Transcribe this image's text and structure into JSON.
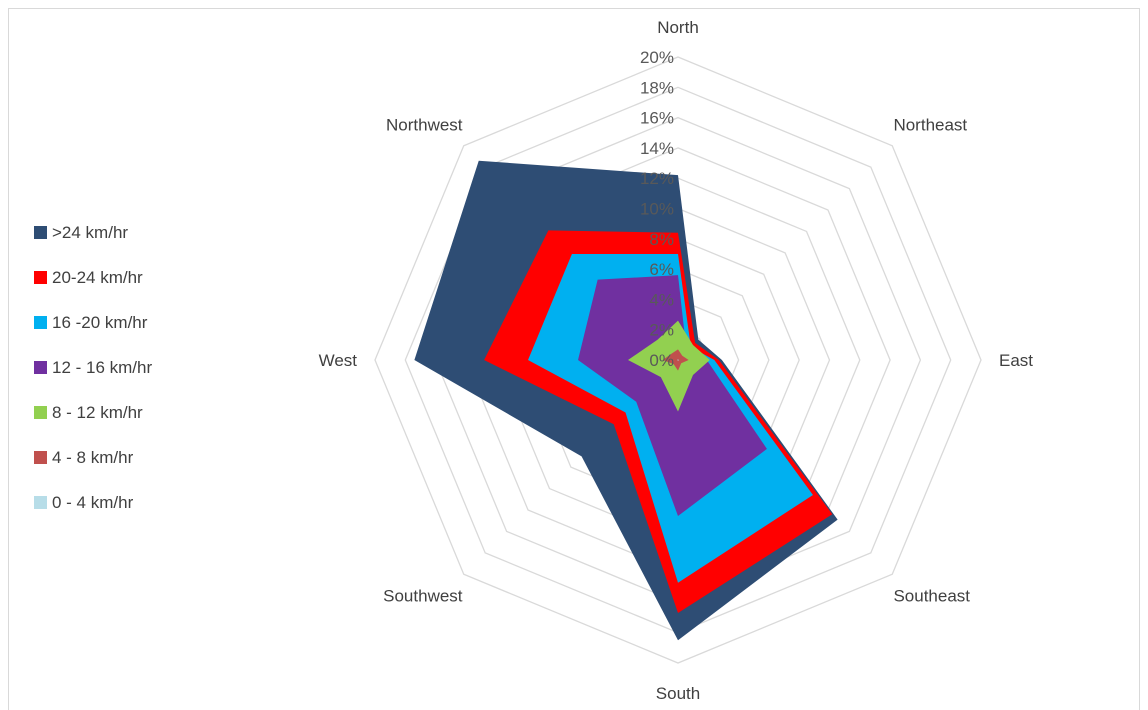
{
  "chart_data": {
    "type": "radar",
    "title": "",
    "categories": [
      "North",
      "Northeast",
      "East",
      "Southeast",
      "South",
      "Southwest",
      "West",
      "Northwest"
    ],
    "r_ticks": [
      "0%",
      "2%",
      "4%",
      "6%",
      "8%",
      "10%",
      "12%",
      "14%",
      "16%",
      "18%",
      "20%"
    ],
    "r_range": [
      0,
      20
    ],
    "grid": true,
    "legend_position": "left",
    "series": [
      {
        "name": ">24 km/hr",
        "color": "#2e4d74",
        "values": [
          12.2,
          1.9,
          2.9,
          14.9,
          18.5,
          9.0,
          17.4,
          18.6
        ]
      },
      {
        "name": "20-24 km/hr",
        "color": "#ff0000",
        "values": [
          8.4,
          1.6,
          2.7,
          14.4,
          16.7,
          6.0,
          12.8,
          12.1
        ]
      },
      {
        "name": "16 -20 km/hr",
        "color": "#00b0f0",
        "values": [
          7.0,
          1.2,
          2.4,
          12.6,
          14.7,
          4.9,
          9.9,
          9.9
        ]
      },
      {
        "name": "12 - 16 km/hr",
        "color": "#7030a0",
        "values": [
          5.6,
          0.8,
          1.9,
          8.3,
          10.3,
          3.9,
          6.6,
          7.5
        ]
      },
      {
        "name": "8 - 12 km/hr",
        "color": "#92d050",
        "values": [
          2.6,
          1.4,
          2.1,
          1.4,
          3.4,
          1.6,
          3.3,
          1.9
        ]
      },
      {
        "name": "4 - 8 km/hr",
        "color": "#c0504d",
        "values": [
          0.7,
          0.4,
          0.7,
          0.3,
          0.7,
          0.4,
          1.0,
          0.6
        ]
      },
      {
        "name": "0 - 4 km/hr",
        "color": "#b7dde8",
        "values": [
          0.05,
          0.03,
          0.05,
          0.05,
          0.05,
          0.03,
          0.05,
          0.03
        ]
      }
    ]
  }
}
